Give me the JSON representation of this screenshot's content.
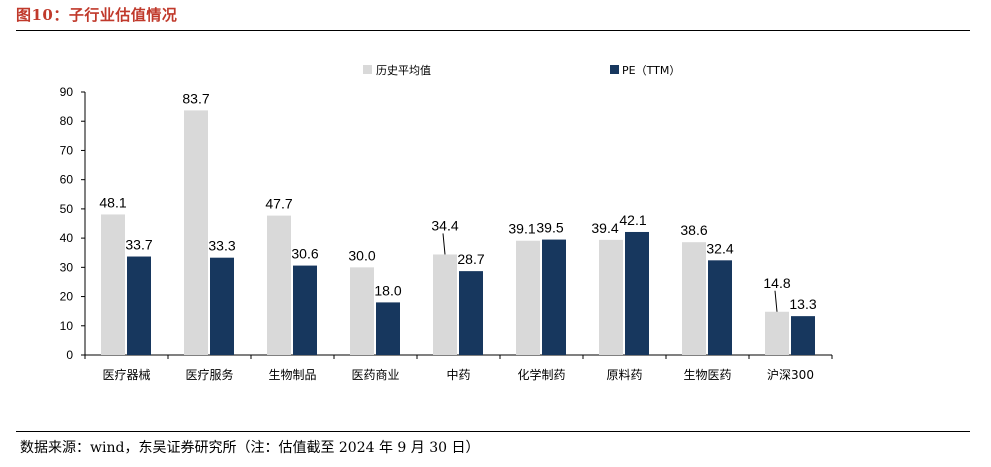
{
  "figure": {
    "title": "图10：子行业估值情况",
    "source": "数据来源：wind，东吴证券研究所（注：估值截至 2024 年 9 月 30 日）"
  },
  "colors": {
    "series_1": "#d9d9d9",
    "series_2": "#17375e",
    "title": "#c0392b"
  },
  "chart_data": {
    "type": "bar",
    "title": "",
    "xlabel": "",
    "ylabel": "",
    "ylim": [
      0,
      90
    ],
    "yticks": [
      0,
      10,
      20,
      30,
      40,
      50,
      60,
      70,
      80,
      90
    ],
    "legend_position": "top",
    "grid": false,
    "categories": [
      "医疗器械",
      "医疗服务",
      "生物制品",
      "医药商业",
      "中药",
      "化学制药",
      "原料药",
      "生物医药",
      "沪深300"
    ],
    "series": [
      {
        "name": "历史平均值",
        "values": [
          48.1,
          83.7,
          47.7,
          30.0,
          34.4,
          39.1,
          39.4,
          38.6,
          14.8
        ]
      },
      {
        "name": "PE（TTM）",
        "values": [
          33.7,
          33.3,
          30.6,
          18.0,
          28.7,
          39.5,
          42.1,
          32.4,
          13.3
        ]
      }
    ],
    "data_labels_1": [
      "48.1",
      "83.7",
      "47.7",
      "30.0",
      "34.4",
      "39.1",
      "39.4",
      "38.6",
      "14.8"
    ],
    "data_labels_2": [
      "33.7",
      "33.3",
      "30.6",
      "18.0",
      "28.7",
      "39.5",
      "42.1",
      "32.4",
      "13.3"
    ]
  }
}
